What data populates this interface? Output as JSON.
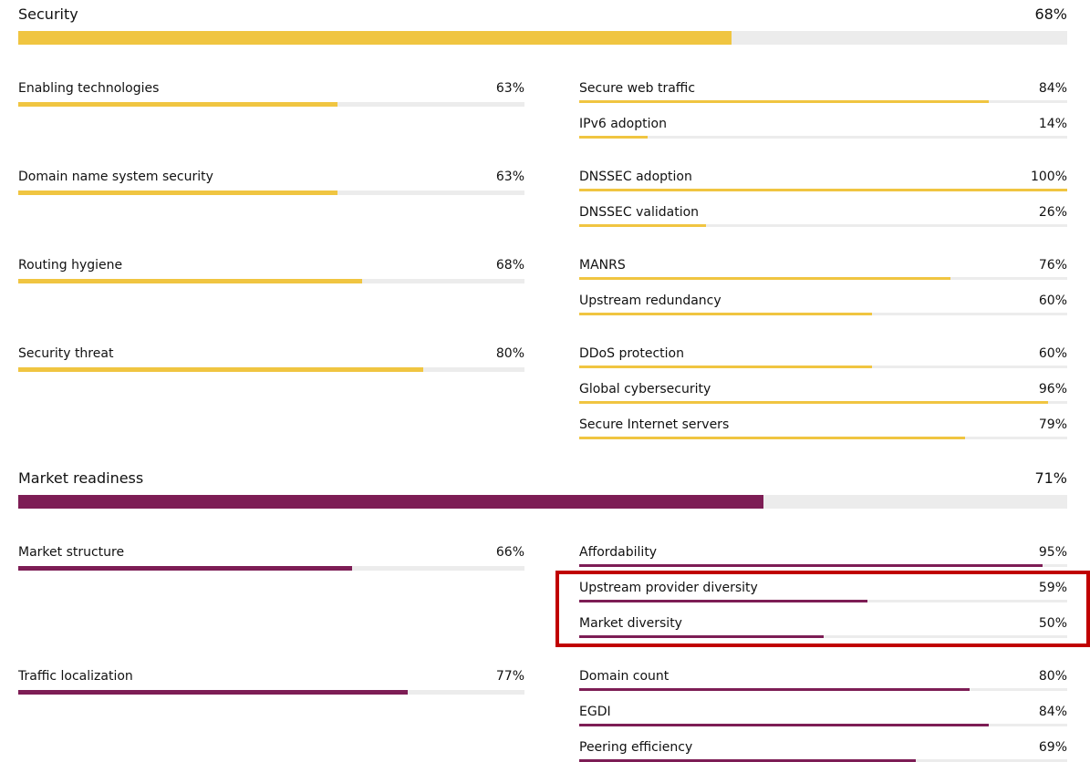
{
  "sections": [
    {
      "title": "Security",
      "value": 68,
      "label": "68%",
      "color": "#f0c541",
      "groups": [
        {
          "name": "Enabling technologies",
          "value": 63,
          "label": "63%",
          "items": [
            {
              "name": "Secure web traffic",
              "value": 84,
              "label": "84%"
            },
            {
              "name": "IPv6 adoption",
              "value": 14,
              "label": "14%"
            }
          ]
        },
        {
          "name": "Domain name system security",
          "value": 63,
          "label": "63%",
          "items": [
            {
              "name": "DNSSEC adoption",
              "value": 100,
              "label": "100%"
            },
            {
              "name": "DNSSEC validation",
              "value": 26,
              "label": "26%"
            }
          ]
        },
        {
          "name": "Routing hygiene",
          "value": 68,
          "label": "68%",
          "items": [
            {
              "name": "MANRS",
              "value": 76,
              "label": "76%"
            },
            {
              "name": "Upstream redundancy",
              "value": 60,
              "label": "60%"
            }
          ]
        },
        {
          "name": "Security threat",
          "value": 80,
          "label": "80%",
          "items": [
            {
              "name": "DDoS protection",
              "value": 60,
              "label": "60%"
            },
            {
              "name": "Global cybersecurity",
              "value": 96,
              "label": "96%"
            },
            {
              "name": "Secure Internet servers",
              "value": 79,
              "label": "79%"
            }
          ]
        }
      ]
    },
    {
      "title": "Market readiness",
      "value": 71,
      "label": "71%",
      "color": "#7d1d55",
      "groups": [
        {
          "name": "Market structure",
          "value": 66,
          "label": "66%",
          "items": [
            {
              "name": "Affordability",
              "value": 95,
              "label": "95%"
            },
            {
              "name": "Upstream provider diversity",
              "value": 59,
              "label": "59%"
            },
            {
              "name": "Market diversity",
              "value": 50,
              "label": "50%"
            }
          ]
        },
        {
          "name": "Traffic localization",
          "value": 77,
          "label": "77%",
          "items": [
            {
              "name": "Domain count",
              "value": 80,
              "label": "80%"
            },
            {
              "name": "EGDI",
              "value": 84,
              "label": "84%"
            },
            {
              "name": "Peering efficiency",
              "value": 69,
              "label": "69%"
            }
          ]
        }
      ]
    }
  ]
}
